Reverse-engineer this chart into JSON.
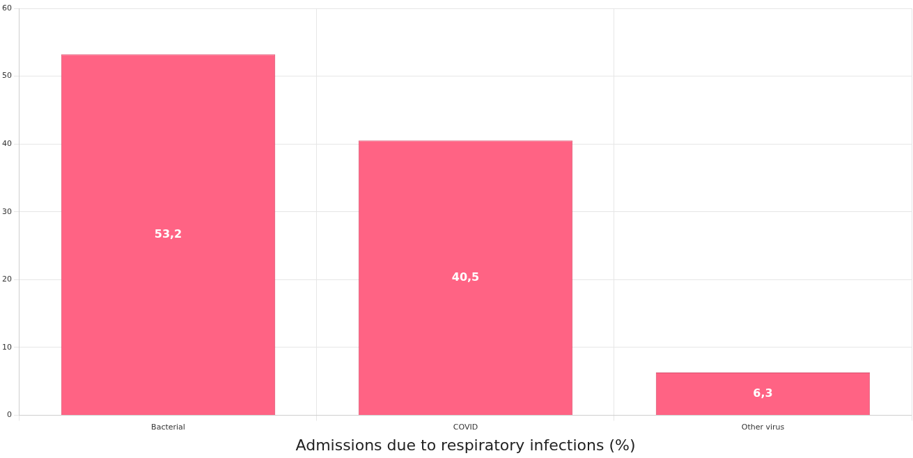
{
  "chart_data": {
    "type": "bar",
    "xlabel": "Admissions due to respiratory infections (%)",
    "categories": [
      "Bacterial",
      "COVID",
      "Other virus"
    ],
    "values": [
      53.2,
      40.5,
      6.3
    ],
    "value_labels": [
      "53,2",
      "40,5",
      "6,3"
    ],
    "color": "#ff6384",
    "ylim": [
      0,
      60
    ],
    "yticks": [
      0,
      10,
      20,
      30,
      40,
      50,
      60
    ],
    "grid": true
  }
}
